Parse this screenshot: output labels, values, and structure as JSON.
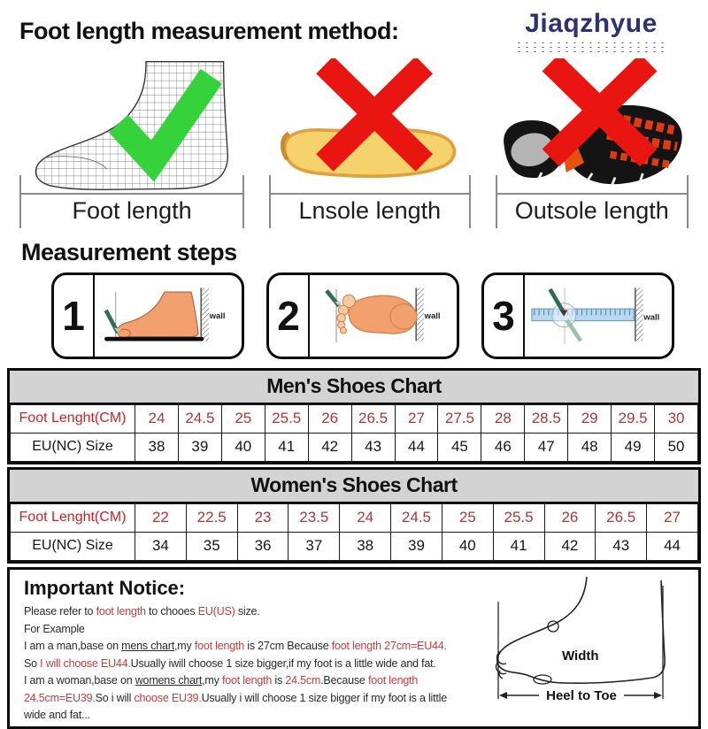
{
  "header": {
    "title": "Foot length measurement method:",
    "brand": "Jiaqzhyue"
  },
  "demo": {
    "items": [
      {
        "label": "Foot length",
        "mark": "green-check"
      },
      {
        "label": "Lnsole length",
        "mark": "red-cross"
      },
      {
        "label": "Outsole length",
        "mark": "red-cross"
      }
    ]
  },
  "steps": {
    "title": "Measurement steps",
    "items": [
      {
        "number": "1",
        "wall_label": "wall"
      },
      {
        "number": "2",
        "wall_label": "wall"
      },
      {
        "number": "3",
        "wall_label": "wall"
      }
    ]
  },
  "charts": {
    "men": {
      "title": "Men's Shoes Chart",
      "row1_label": "Foot Lenght(CM)",
      "row2_label": "EU(NC) Size",
      "lengths": [
        "24",
        "24.5",
        "25",
        "25.5",
        "26",
        "26.5",
        "27",
        "27.5",
        "28",
        "28.5",
        "29",
        "29.5",
        "30"
      ],
      "sizes": [
        "38",
        "39",
        "40",
        "41",
        "42",
        "43",
        "44",
        "45",
        "46",
        "47",
        "48",
        "49",
        "50"
      ]
    },
    "women": {
      "title": "Women's Shoes Chart",
      "row1_label": "Foot Lenght(CM)",
      "row2_label": "EU(NC) Size",
      "lengths": [
        "22",
        "22.5",
        "23",
        "23.5",
        "24",
        "24.5",
        "25",
        "25.5",
        "26",
        "26.5",
        "27"
      ],
      "sizes": [
        "34",
        "35",
        "36",
        "37",
        "38",
        "39",
        "40",
        "41",
        "42",
        "43",
        "44"
      ]
    }
  },
  "notice": {
    "title": "Important Notice:",
    "lines": [
      {
        "segs": [
          {
            "t": "Please refer to "
          },
          {
            "t": "foot length",
            "s": "red"
          },
          {
            "t": " to chooes "
          },
          {
            "t": "EU(US)",
            "s": "red"
          },
          {
            "t": " size."
          }
        ]
      },
      {
        "segs": [
          {
            "t": "For Example"
          }
        ]
      },
      {
        "segs": [
          {
            "t": "I am a man,base on "
          },
          {
            "t": "mens chart",
            "s": "u"
          },
          {
            "t": ",my "
          },
          {
            "t": "foot length",
            "s": "red"
          },
          {
            "t": " is 27cm Because "
          },
          {
            "t": "foot length 27cm=EU44.",
            "s": "red"
          }
        ]
      },
      {
        "segs": [
          {
            "t": "So "
          },
          {
            "t": "I will choose EU44.",
            "s": "red"
          },
          {
            "t": "Usually iwill choose 1 size bigger,if my foot is a little wide and fat."
          }
        ]
      },
      {
        "segs": [
          {
            "t": "I am a woman,base on "
          },
          {
            "t": "womens chart",
            "s": "u"
          },
          {
            "t": ",my "
          },
          {
            "t": "foot length",
            "s": "red"
          },
          {
            "t": " is "
          },
          {
            "t": "24.5cm",
            "s": "red"
          },
          {
            "t": ".Because "
          },
          {
            "t": "foot length",
            "s": "red"
          }
        ]
      },
      {
        "segs": [
          {
            "t": "24.5cm=EU39.",
            "s": "red"
          },
          {
            "t": "So i will "
          },
          {
            "t": "choose EU39.",
            "s": "red"
          },
          {
            "t": "Usually i will choose 1 size bigger if my foot is a little"
          }
        ]
      },
      {
        "segs": [
          {
            "t": "wide and fat..."
          }
        ]
      }
    ],
    "diagram": {
      "width_label": "Width",
      "heel_toe_label": "Heel to Toe"
    }
  },
  "colors": {
    "brand_navy": "#2e3272",
    "check_green": "#35d23b",
    "cross_red": "#e81511",
    "table_label_red": "#cc2225",
    "table_value_red": "#a63838",
    "notice_red": "#c43c3c",
    "header_bar_gray": "#d3d3d3",
    "insole_yellow": "#f6d26d",
    "skin": "#f2a06d",
    "ruler_blue": "#b7d9ee",
    "pencil_green": "#356b5a"
  }
}
